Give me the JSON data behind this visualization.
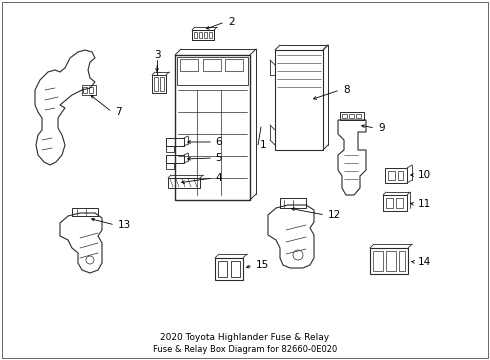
{
  "title_line1": "2020 Toyota Highlander Fuse & Relay",
  "title_line2": "Fuse & Relay Box Diagram for 82660-0E020",
  "bg_color": "#ffffff",
  "lc": "#2a2a2a",
  "label_fs": 7.5
}
